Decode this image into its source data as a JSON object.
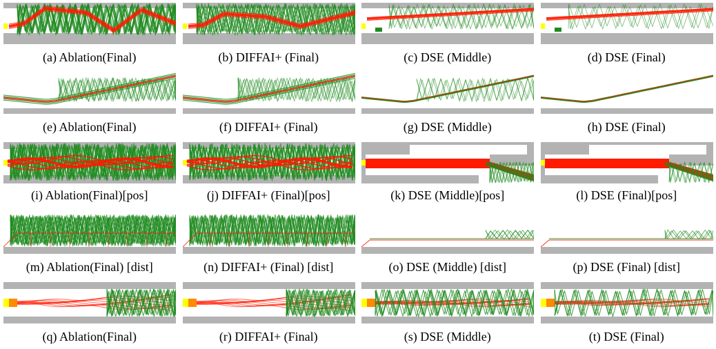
{
  "figure": {
    "panels": [
      {
        "caption": "(a) Ablation(Final)",
        "variant": "ablation",
        "scene": "zigzag"
      },
      {
        "caption": "(b) DIFFAI+ (Final)",
        "variant": "diffai",
        "scene": "zigzag"
      },
      {
        "caption": "(c) DSE (Middle)",
        "variant": "dse_mid",
        "scene": "zigzag"
      },
      {
        "caption": "(d) DSE (Final)",
        "variant": "dse_final",
        "scene": "zigzag"
      },
      {
        "caption": "(e) Ablation(Final)",
        "variant": "ablation",
        "scene": "curve"
      },
      {
        "caption": "(f) DIFFAI+ (Final)",
        "variant": "diffai",
        "scene": "curve"
      },
      {
        "caption": "(g) DSE (Middle)",
        "variant": "dse_mid",
        "scene": "curve"
      },
      {
        "caption": "(h) DSE (Final)",
        "variant": "dse_final",
        "scene": "curve"
      },
      {
        "caption": "(i) Ablation(Final)[pos]",
        "variant": "ablation",
        "scene": "corridor"
      },
      {
        "caption": "(j) DIFFAI+ (Final)[pos]",
        "variant": "diffai",
        "scene": "corridor"
      },
      {
        "caption": "(k) DSE (Middle)[pos]",
        "variant": "dse_mid",
        "scene": "stair"
      },
      {
        "caption": "(l) DSE (Final)[pos]",
        "variant": "dse_final",
        "scene": "stair"
      },
      {
        "caption": "(m) Ablation(Final) [dist]",
        "variant": "ablation",
        "scene": "dist"
      },
      {
        "caption": "(n) DIFFAI+ (Final) [dist]",
        "variant": "diffai",
        "scene": "dist"
      },
      {
        "caption": "(o) DSE (Middle) [dist]",
        "variant": "dse_mid",
        "scene": "dist"
      },
      {
        "caption": "(p) DSE (Final) [dist]",
        "variant": "dse_final",
        "scene": "dist"
      },
      {
        "caption": "(q) Ablation(Final)",
        "variant": "ablation",
        "scene": "tunnel"
      },
      {
        "caption": "(r) DIFFAI+ (Final)",
        "variant": "diffai",
        "scene": "tunnel"
      },
      {
        "caption": "(s) DSE (Middle)",
        "variant": "dse_mid",
        "scene": "tunnel"
      },
      {
        "caption": "(t) DSE (Final)",
        "variant": "dse_final",
        "scene": "tunnel"
      }
    ]
  },
  "colors": {
    "obstacle": "#b3b3b3",
    "trajectory_bound": "#1e8a1e",
    "trajectory_center": "#ff1a00",
    "start_marker": "#ffff00",
    "start_orange": "#ff8a00"
  }
}
